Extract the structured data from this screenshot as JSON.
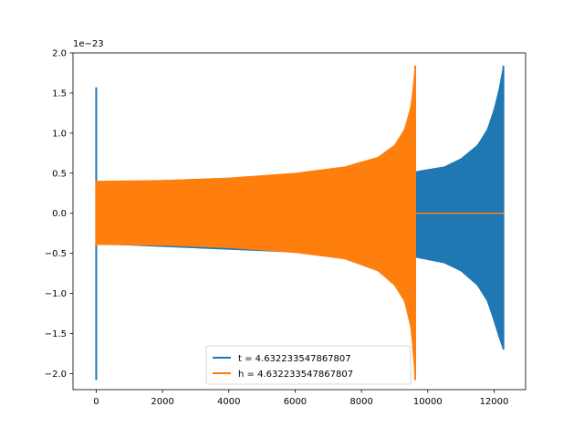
{
  "chart_data": {
    "type": "line",
    "title": "",
    "xlabel": "",
    "ylabel": "",
    "y_offset_label": "1e−23",
    "xlim": [
      -700,
      12950
    ],
    "ylim": [
      -2.2,
      2.0
    ],
    "x_ticks": [
      {
        "value": 0,
        "label": "0"
      },
      {
        "value": 2000,
        "label": "2000"
      },
      {
        "value": 4000,
        "label": "4000"
      },
      {
        "value": 6000,
        "label": "6000"
      },
      {
        "value": 8000,
        "label": "8000"
      },
      {
        "value": 10000,
        "label": "10000"
      },
      {
        "value": 12000,
        "label": "12000"
      }
    ],
    "y_ticks": [
      {
        "value": -2.0,
        "label": "−2.0"
      },
      {
        "value": -1.5,
        "label": "−1.5"
      },
      {
        "value": -1.0,
        "label": "−1.0"
      },
      {
        "value": -0.5,
        "label": "−0.5"
      },
      {
        "value": 0.0,
        "label": "0.0"
      },
      {
        "value": 0.5,
        "label": "0.5"
      },
      {
        "value": 1.0,
        "label": "1.0"
      },
      {
        "value": 1.5,
        "label": "1.5"
      },
      {
        "value": 2.0,
        "label": "2.0"
      }
    ],
    "grid": false,
    "legend_position": "lower-center",
    "series": [
      {
        "name": "t = 4.632233547867807",
        "color": "#1f77b4",
        "style": "oscillation envelope",
        "spike_start": {
          "x": 0,
          "upper": 1.57,
          "lower": -2.08
        },
        "envelope": [
          {
            "x": 0,
            "upper": 0.38,
            "lower": -0.38
          },
          {
            "x": 9650,
            "upper": 0.52,
            "lower": -0.55
          },
          {
            "x": 10500,
            "upper": 0.58,
            "lower": -0.62
          },
          {
            "x": 11000,
            "upper": 0.68,
            "lower": -0.72
          },
          {
            "x": 11500,
            "upper": 0.85,
            "lower": -0.9
          },
          {
            "x": 11800,
            "upper": 1.05,
            "lower": -1.1
          },
          {
            "x": 12000,
            "upper": 1.3,
            "lower": -1.35
          },
          {
            "x": 12150,
            "upper": 1.55,
            "lower": -1.55
          },
          {
            "x": 12280,
            "upper": 1.84,
            "lower": -1.7
          }
        ],
        "tail": {
          "x_start": 12300,
          "x_end": 12300,
          "value": 0.0
        }
      },
      {
        "name": "h = 4.632233547867807",
        "color": "#ff7f0e",
        "style": "oscillation envelope",
        "spike_start": {
          "x": 0,
          "upper": 0.4,
          "lower": -0.4
        },
        "envelope": [
          {
            "x": 0,
            "upper": 0.4,
            "lower": -0.39
          },
          {
            "x": 2000,
            "upper": 0.41,
            "lower": -0.4
          },
          {
            "x": 4000,
            "upper": 0.44,
            "lower": -0.43
          },
          {
            "x": 6000,
            "upper": 0.5,
            "lower": -0.49
          },
          {
            "x": 7500,
            "upper": 0.58,
            "lower": -0.57
          },
          {
            "x": 8500,
            "upper": 0.7,
            "lower": -0.72
          },
          {
            "x": 9000,
            "upper": 0.85,
            "lower": -0.9
          },
          {
            "x": 9300,
            "upper": 1.05,
            "lower": -1.1
          },
          {
            "x": 9500,
            "upper": 1.35,
            "lower": -1.45
          },
          {
            "x": 9620,
            "upper": 1.84,
            "lower": -2.08
          }
        ],
        "tail": {
          "x_start": 9650,
          "x_end": 12300,
          "value": 0.0
        }
      }
    ]
  }
}
